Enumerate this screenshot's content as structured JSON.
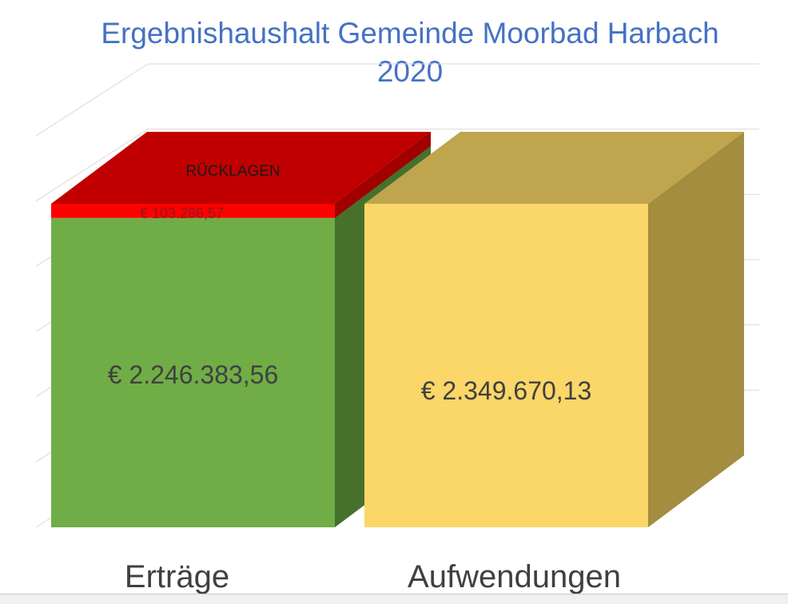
{
  "chart_data": {
    "type": "bar",
    "style": "3d-stacked-column",
    "title_lines": [
      "Ergebnishaushalt Gemeinde Moorbad Harbach",
      "2020"
    ],
    "categories": [
      "Erträge",
      "Aufwendungen"
    ],
    "series": [
      {
        "name": "",
        "values": [
          2246383.56,
          2349670.13
        ],
        "labels": [
          "€ 2.246.383,56",
          "€ 2.349.670,13"
        ],
        "colors": [
          "#70ad47",
          "#fbd668"
        ]
      },
      {
        "name": "RÜCKLAGEN",
        "values": [
          103286.57,
          null
        ],
        "labels": [
          "€ 103.286,57",
          ""
        ],
        "colors": [
          "#ff0000",
          null
        ]
      }
    ],
    "top_colors": [
      "#c00000",
      "#bfa54e"
    ],
    "side_colors": [
      "#46702b",
      "#a38d3f"
    ],
    "grid": true,
    "legend": "none"
  }
}
